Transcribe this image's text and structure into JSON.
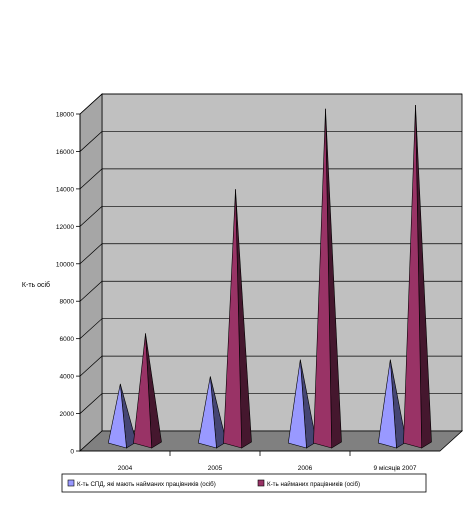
{
  "chart_data": {
    "type": "bar",
    "style": "3d-cone",
    "categories": [
      "2004",
      "2005",
      "2006",
      "9 місяців 2007"
    ],
    "series": [
      {
        "name": "К-ть СПД, які мають найманих працівників (осіб)",
        "values": [
          3100,
          3500,
          4400,
          4400
        ],
        "color": "#9999ff"
      },
      {
        "name": "К-ть найманих працівників (осіб)",
        "values": [
          5800,
          13500,
          17800,
          18000
        ],
        "color": "#993366"
      }
    ],
    "ylabel": "К-ть осіб",
    "ylim": [
      0,
      18000
    ],
    "yticks": [
      "0",
      "2000",
      "4000",
      "6000",
      "8000",
      "10000",
      "12000",
      "14000",
      "16000",
      "18000"
    ],
    "grid": true,
    "legend_position": "bottom",
    "wall_color": "#c0c0c0",
    "floor_color": "#808080"
  }
}
